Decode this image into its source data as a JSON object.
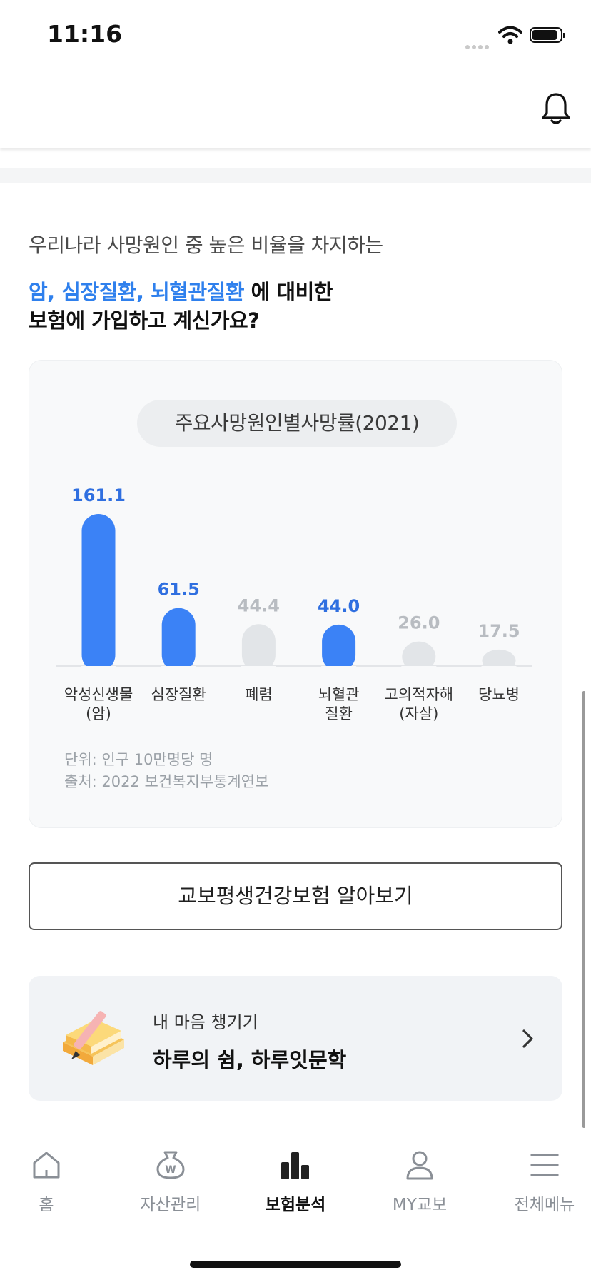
{
  "status": {
    "time": "11:16"
  },
  "header": {
    "bell_icon": "bell-icon"
  },
  "headline": {
    "line1": "우리나라 사망원인 중 높은 비율을 차지하는",
    "highlight": "암, 심장질환, 뇌혈관질환",
    "line2_rest": " 에 대비한",
    "line3": "보험에 가입하고 계신가요?"
  },
  "chart_data": {
    "type": "bar",
    "title": "주요사망원인별사망률(2021)",
    "categories": [
      "악성신생물\n(암)",
      "심장질환",
      "폐렴",
      "뇌혈관\n질환",
      "고의적자해\n(자살)",
      "당뇨병"
    ],
    "values": [
      161.1,
      61.5,
      44.4,
      44.0,
      26.0,
      17.5
    ],
    "value_labels": [
      "161.1",
      "61.5",
      "44.4",
      "44.0",
      "26.0",
      "17.5"
    ],
    "highlighted": [
      true,
      true,
      false,
      true,
      false,
      false
    ],
    "colors": {
      "highlight": "#3b82f6",
      "muted": "#e2e5e8",
      "label_highlight": "#2f6fe0",
      "label_muted": "#b8bcc1"
    },
    "ylim": [
      0,
      161.1
    ],
    "unit_note": "단위: 인구 10만명당 명",
    "source_note": "출처: 2022 보건복지부통계연보"
  },
  "cta_button": {
    "label": "교보평생건강보험 알아보기"
  },
  "promo": {
    "subtitle": "내 마음 챙기기",
    "title": "하루의 쉼, 하루잇문학"
  },
  "tabs": [
    {
      "label": "홈",
      "icon": "home-icon",
      "active": false
    },
    {
      "label": "자산관리",
      "icon": "money-bag-icon",
      "active": false
    },
    {
      "label": "보험분석",
      "icon": "bar-chart-icon",
      "active": true
    },
    {
      "label": "MY교보",
      "icon": "person-icon",
      "active": false
    },
    {
      "label": "전체메뉴",
      "icon": "menu-icon",
      "active": false
    }
  ]
}
